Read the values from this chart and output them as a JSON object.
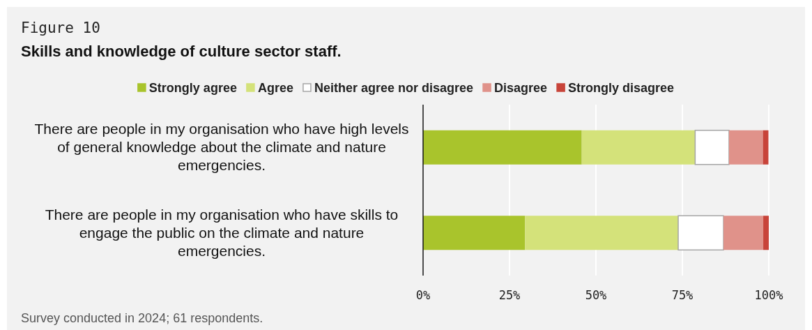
{
  "chart_data": {
    "type": "bar",
    "orientation": "horizontal",
    "stacked": true,
    "subtitle": "Figure 10",
    "title": "Skills and knowledge of culture sector staff.",
    "categories": [
      "There are people in my organisation who have high levels of general knowledge about the climate and nature emergencies.",
      "There are people in my organisation who have skills to engage the public on the climate and nature emergencies."
    ],
    "series": [
      {
        "name": "Strongly agree",
        "color": "#a9c42c",
        "values": [
          45.9,
          29.5
        ]
      },
      {
        "name": "Agree",
        "color": "#d4e27a",
        "values": [
          32.8,
          44.3
        ]
      },
      {
        "name": "Neither agree nor disagree",
        "color": "#ffffff",
        "values": [
          9.8,
          13.1
        ]
      },
      {
        "name": "Disagree",
        "color": "#e0928a",
        "values": [
          9.8,
          11.5
        ]
      },
      {
        "name": "Strongly disagree",
        "color": "#c8443a",
        "values": [
          1.6,
          1.6
        ]
      }
    ],
    "xlim": [
      0,
      100
    ],
    "xticks": [
      {
        "value": 0,
        "label": "0%"
      },
      {
        "value": 25,
        "label": "25%"
      },
      {
        "value": 50,
        "label": "50%"
      },
      {
        "value": 75,
        "label": "75%"
      },
      {
        "value": 100,
        "label": "100%"
      }
    ],
    "grid": "x",
    "legend": "top",
    "annotations": [
      "Survey conducted in 2024; 61 respondents."
    ]
  }
}
